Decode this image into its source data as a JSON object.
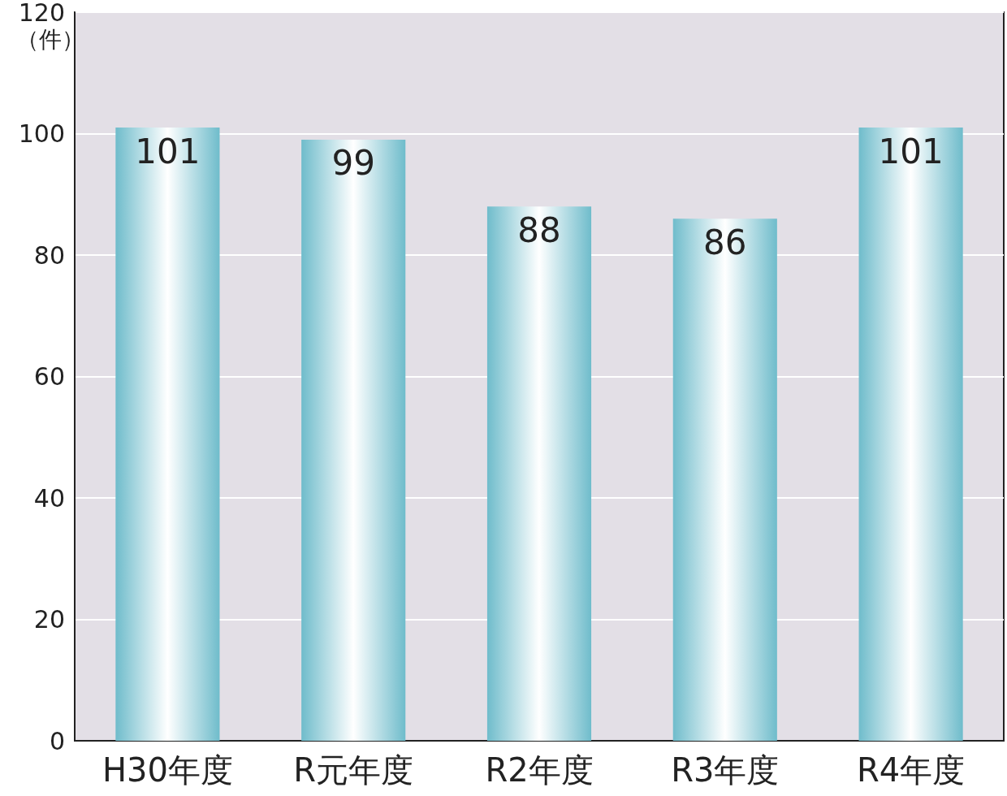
{
  "chart_data": {
    "type": "bar",
    "ylabel": "（件）",
    "categories": [
      "H30年度",
      "R元年度",
      "R2年度",
      "R3年度",
      "R4年度"
    ],
    "values": [
      101,
      99,
      88,
      86,
      101
    ],
    "color": "#6fbccb",
    "ylim": [
      0,
      120
    ],
    "yticks": [
      0,
      20,
      40,
      60,
      80,
      100,
      120
    ],
    "grid": "y",
    "data_labels": true
  }
}
